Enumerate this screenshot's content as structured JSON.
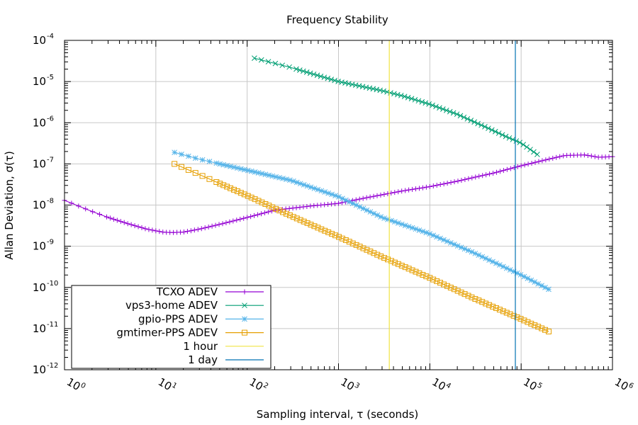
{
  "chart_data": {
    "type": "line",
    "title": "Frequency Stability",
    "xlabel": "Sampling interval, τ (seconds)",
    "ylabel": "Allan Deviation, σ(τ)",
    "xscale": "log",
    "yscale": "log",
    "xlim": [
      1,
      1000000
    ],
    "ylim": [
      1e-12,
      0.0001
    ],
    "grid": true,
    "legend_position": "bottom-left",
    "x_ticks": [
      {
        "base": "10",
        "exp": "0",
        "value": 1
      },
      {
        "base": "10",
        "exp": "1",
        "value": 10
      },
      {
        "base": "10",
        "exp": "2",
        "value": 100
      },
      {
        "base": "10",
        "exp": "3",
        "value": 1000
      },
      {
        "base": "10",
        "exp": "4",
        "value": 10000
      },
      {
        "base": "10",
        "exp": "5",
        "value": 100000
      },
      {
        "base": "10",
        "exp": "6",
        "value": 1000000
      }
    ],
    "y_ticks": [
      {
        "base": "10",
        "exp": "-4",
        "value": 0.0001
      },
      {
        "base": "10",
        "exp": "-5",
        "value": 1e-05
      },
      {
        "base": "10",
        "exp": "-6",
        "value": 1e-06
      },
      {
        "base": "10",
        "exp": "-7",
        "value": 1e-07
      },
      {
        "base": "10",
        "exp": "-8",
        "value": 1e-08
      },
      {
        "base": "10",
        "exp": "-9",
        "value": 1e-09
      },
      {
        "base": "10",
        "exp": "-10",
        "value": 1e-10
      },
      {
        "base": "10",
        "exp": "-11",
        "value": 1e-11
      },
      {
        "base": "10",
        "exp": "-12",
        "value": 1e-12
      }
    ],
    "series": [
      {
        "name": "TCXO ADEV",
        "color": "#9400d3",
        "marker": "plus",
        "x": [
          1,
          2,
          3,
          5,
          8,
          12,
          15,
          20,
          30,
          50,
          100,
          200,
          500,
          1000,
          2000,
          5000,
          10000,
          20000,
          50000,
          100000,
          200000,
          300000,
          500000,
          700000,
          1000000
        ],
        "y": [
          1.3e-08,
          7e-09,
          5e-09,
          3.5e-09,
          2.6e-09,
          2.2e-09,
          2.15e-09,
          2.2e-09,
          2.6e-09,
          3.4e-09,
          5e-09,
          7.5e-09,
          9.5e-09,
          1.1e-08,
          1.5e-08,
          2.2e-08,
          2.8e-08,
          3.8e-08,
          6e-08,
          9e-08,
          1.3e-07,
          1.6e-07,
          1.65e-07,
          1.45e-07,
          1.5e-07
        ]
      },
      {
        "name": "vps3-home ADEV",
        "color": "#009e73",
        "marker": "x",
        "x": [
          120,
          300,
          1000,
          3000,
          5000,
          10000,
          20000,
          40000,
          70000,
          100000,
          150000
        ],
        "y": [
          3.7e-05,
          2.2e-05,
          1e-05,
          6e-06,
          4.5e-06,
          2.8e-06,
          1.6e-06,
          8e-07,
          4.5e-07,
          3.2e-07,
          1.7e-07
        ]
      },
      {
        "name": "gpio-PPS ADEV",
        "color": "#56b4e9",
        "marker": "star",
        "x": [
          16,
          30,
          100,
          300,
          1000,
          3000,
          10000,
          30000,
          100000,
          200000
        ],
        "y": [
          1.9e-07,
          1.3e-07,
          7e-08,
          4e-08,
          1.6e-08,
          5e-09,
          2e-09,
          7e-10,
          2e-10,
          9e-11
        ]
      },
      {
        "name": "gmtimer-PPS ADEV",
        "color": "#e69f00",
        "marker": "square",
        "x": [
          16,
          30,
          100,
          300,
          1000,
          3000,
          10000,
          30000,
          100000,
          200000
        ],
        "y": [
          1e-07,
          5.5e-08,
          1.7e-08,
          5.5e-09,
          1.7e-09,
          5.5e-10,
          1.7e-10,
          5.5e-11,
          1.7e-11,
          8.5e-12
        ]
      },
      {
        "name": "1 hour",
        "color": "#f0e442",
        "marker": "none",
        "vertical_x": 3600,
        "x": [
          3600,
          3600
        ],
        "y": [
          1e-12,
          0.0001
        ]
      },
      {
        "name": "1 day",
        "color": "#0072b2",
        "marker": "none",
        "vertical_x": 86400,
        "x": [
          86400,
          86400
        ],
        "y": [
          1e-12,
          0.0001
        ]
      }
    ]
  }
}
